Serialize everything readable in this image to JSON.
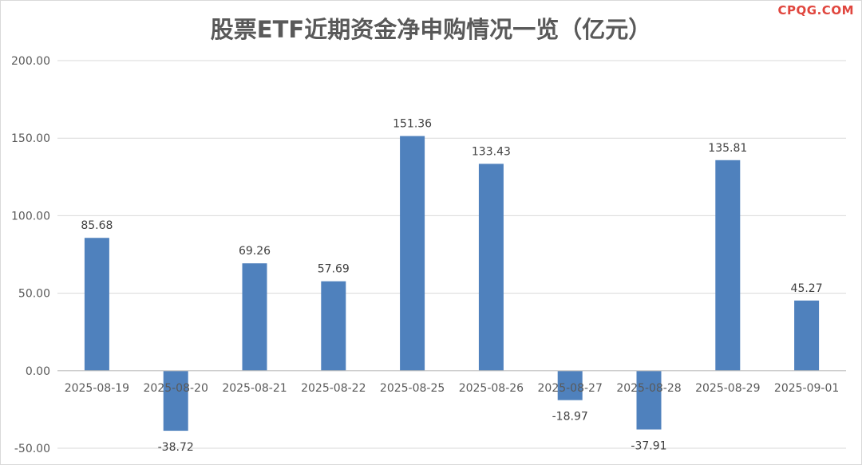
{
  "watermark": "CPQG.COM",
  "chart_data": {
    "type": "bar",
    "title": "股票ETF近期资金净申购情况一览（亿元）",
    "xlabel": "",
    "ylabel": "",
    "categories": [
      "2025-08-19",
      "2025-08-20",
      "2025-08-21",
      "2025-08-22",
      "2025-08-25",
      "2025-08-26",
      "2025-08-27",
      "2025-08-28",
      "2025-08-29",
      "2025-09-01"
    ],
    "values": [
      85.68,
      -38.72,
      69.26,
      57.69,
      151.36,
      133.43,
      -18.97,
      -37.91,
      135.81,
      45.27
    ],
    "value_labels": [
      "85.68",
      "-38.72",
      "69.26",
      "57.69",
      "151.36",
      "133.43",
      "-18.97",
      "-37.91",
      "135.81",
      "45.27"
    ],
    "ylim": [
      -50,
      200
    ],
    "yticks": [
      200,
      150,
      100,
      50,
      0,
      -50
    ],
    "ytick_labels": [
      "200.00",
      "150.00",
      "100.00",
      "50.00",
      "0.00",
      "-50.00"
    ],
    "grid": true,
    "legend": "none",
    "colors": {
      "bar": "#4f81bd",
      "grid": "#d9d9d9",
      "axis": "#bfbfbf"
    }
  }
}
